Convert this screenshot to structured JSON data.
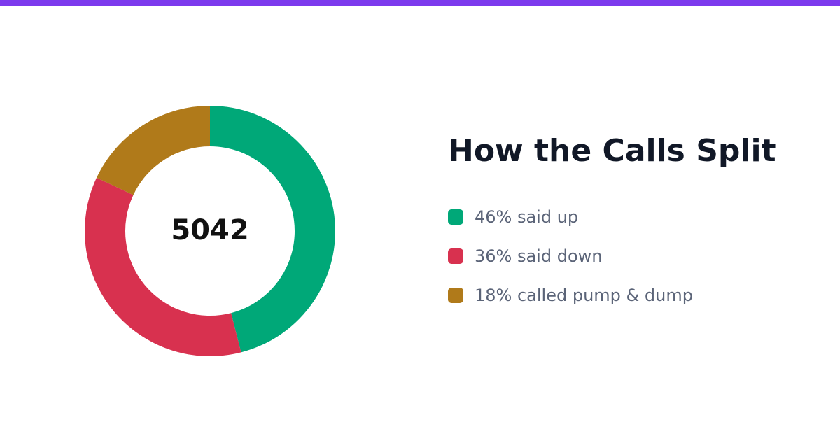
{
  "theme": {
    "accent": "#7c3aed",
    "background": "#ffffff",
    "title_color": "#111827",
    "legend_text_color": "#5b6478"
  },
  "chart_data": {
    "type": "pie",
    "title": "How the Calls Split",
    "center_label": "5042",
    "slices": [
      {
        "label": "46% said up",
        "value": 46,
        "color": "#00a878"
      },
      {
        "label": "36% said down",
        "value": 36,
        "color": "#d8314f"
      },
      {
        "label": "18% called pump & dump",
        "value": 18,
        "color": "#b07a1a"
      }
    ],
    "legend_position": "right"
  }
}
